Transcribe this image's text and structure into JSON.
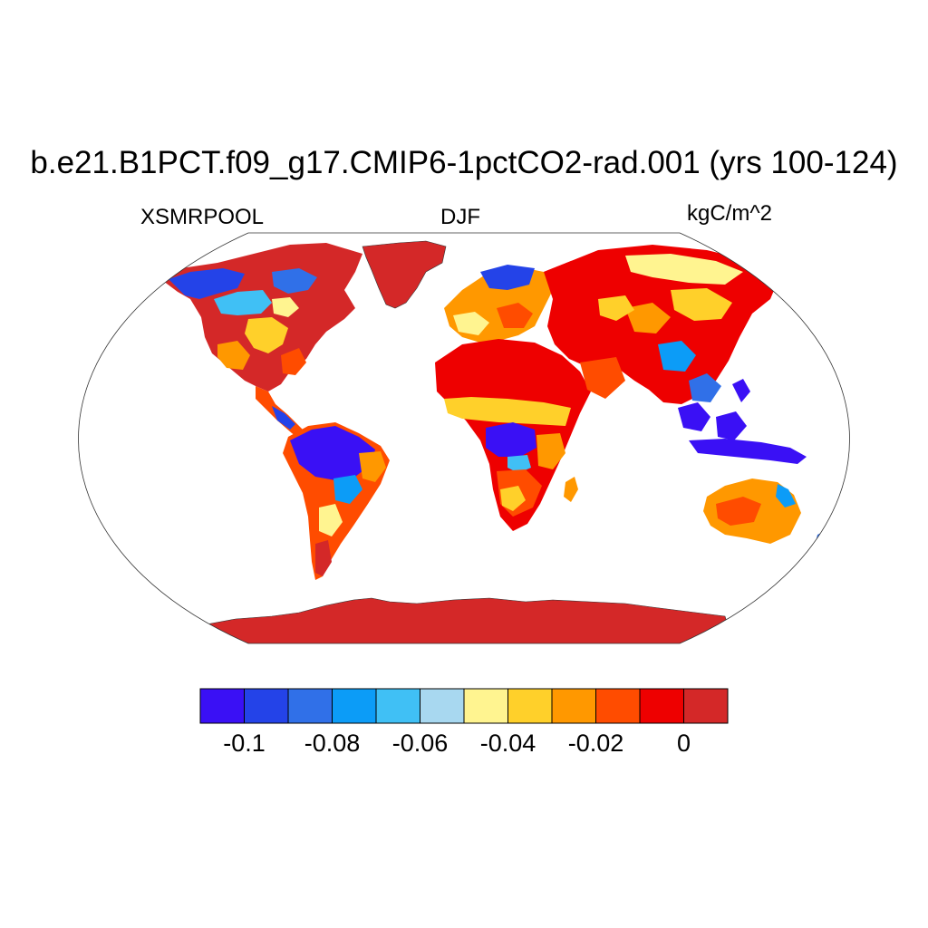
{
  "title": "b.e21.B1PCT.f09_g17.CMIP6-1pctCO2-rad.001 (yrs 100-124)",
  "variable": "XSMRPOOL",
  "season": "DJF",
  "units": "kgC/m^2",
  "colorbar": {
    "colors": [
      "#3a10f5",
      "#2443e8",
      "#3070e8",
      "#0c9cf7",
      "#40c0f5",
      "#a8d8f0",
      "#fff490",
      "#ffd02a",
      "#ff9800",
      "#ff4c00",
      "#ee0000",
      "#d42828"
    ],
    "tick_labels": [
      "-0.1",
      "-0.08",
      "-0.06",
      "-0.04",
      "-0.02",
      "0"
    ]
  },
  "map": {
    "projection": "robinson",
    "ocean_color": "#ffffff",
    "antarctica_color": "#d42828"
  }
}
